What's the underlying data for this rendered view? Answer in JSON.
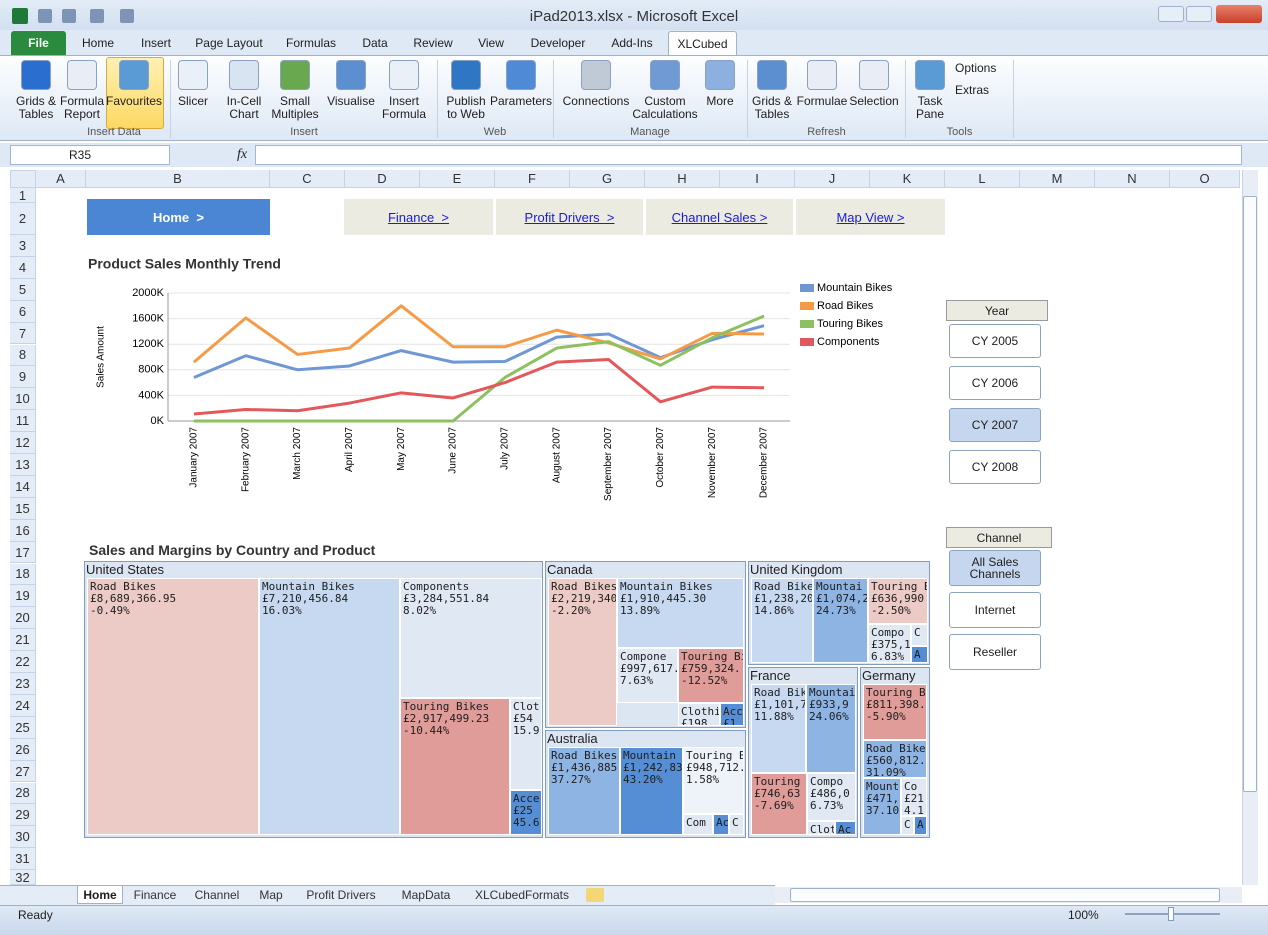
{
  "window": {
    "title": "iPad2013.xlsx - Microsoft Excel"
  },
  "ribbon": {
    "tabs": [
      "File",
      "Home",
      "Insert",
      "Page Layout",
      "Formulas",
      "Data",
      "Review",
      "View",
      "Developer",
      "Add-Ins",
      "XLCubed"
    ],
    "groups": [
      {
        "label": "Insert Data",
        "buttons": [
          "Grids &\nTables",
          "Formula\nReport",
          "Favourites"
        ]
      },
      {
        "label": "Insert",
        "buttons": [
          "Slicer",
          "In-Cell\nChart",
          "Small\nMultiples",
          "Visualise",
          "Insert\nFormula"
        ]
      },
      {
        "label": "Web",
        "buttons": [
          "Publish\nto Web",
          "Parameters"
        ]
      },
      {
        "label": "Manage",
        "buttons": [
          "Connections",
          "Custom\nCalculations",
          "More"
        ]
      },
      {
        "label": "Refresh",
        "buttons": [
          "Grids &\nTables",
          "Formulae",
          "Selection"
        ]
      },
      {
        "label": "Tools",
        "buttons": [
          "Task\nPane",
          "Options",
          "Extras"
        ]
      }
    ]
  },
  "name_box": "R35",
  "formula_label": "fx",
  "columns": [
    "A",
    "B",
    "C",
    "D",
    "E",
    "F",
    "G",
    "H",
    "I",
    "J",
    "K",
    "L",
    "M",
    "N",
    "O"
  ],
  "rows": [
    1,
    2,
    3,
    4,
    5,
    6,
    7,
    8,
    9,
    10,
    11,
    12,
    13,
    14,
    15,
    16,
    17,
    18,
    19,
    20,
    21,
    22,
    23,
    24,
    25,
    26,
    27,
    28,
    29,
    30,
    31,
    32
  ],
  "navigation": [
    "Home  >",
    "Finance  >",
    "Profit Drivers  >",
    "Channel Sales >",
    "Map View >"
  ],
  "chart_data": {
    "type": "line",
    "title": "Product Sales Monthly Trend",
    "y_label": "Sales Amount",
    "categories": [
      "January 2007",
      "February 2007",
      "March 2007",
      "April 2007",
      "May 2007",
      "June 2007",
      "July 2007",
      "August 2007",
      "September 2007",
      "October 2007",
      "November 2007",
      "December 2007"
    ],
    "series": [
      {
        "name": "Mountain Bikes",
        "color": "#6f97d4",
        "values": [
          680000,
          1020000,
          800000,
          860000,
          1100000,
          920000,
          930000,
          1310000,
          1360000,
          990000,
          1270000,
          1490000
        ]
      },
      {
        "name": "Road Bikes",
        "color": "#f79a46",
        "values": [
          920000,
          1610000,
          1040000,
          1140000,
          1800000,
          1160000,
          1160000,
          1420000,
          1220000,
          970000,
          1370000,
          1360000
        ]
      },
      {
        "name": "Touring Bikes",
        "color": "#8dc160",
        "values": [
          0,
          0,
          0,
          0,
          0,
          0,
          680000,
          1140000,
          1240000,
          870000,
          1300000,
          1640000
        ]
      },
      {
        "name": "Components",
        "color": "#e3585a",
        "values": [
          110000,
          180000,
          160000,
          280000,
          440000,
          360000,
          600000,
          920000,
          960000,
          300000,
          530000,
          520000
        ]
      }
    ],
    "ylim": [
      0,
      2000000
    ],
    "yticks": [
      {
        "value": 0,
        "label": "0K"
      },
      {
        "value": 400000,
        "label": "400K"
      },
      {
        "value": 800000,
        "label": "800K"
      },
      {
        "value": 1200000,
        "label": "1200K"
      },
      {
        "value": 1600000,
        "label": "1600K"
      },
      {
        "value": 2000000,
        "label": "2000K"
      }
    ],
    "grid": true,
    "legend": "right"
  },
  "slicers": [
    {
      "title": "Year",
      "items": [
        "CY 2005",
        "CY 2006",
        "CY 2007",
        "CY 2008"
      ]
    },
    {
      "title": "Channel",
      "items": [
        "All Sales Channels",
        "Internet",
        "Reseller"
      ]
    }
  ],
  "treemap": {
    "title": "Sales and Margins by Country and Product",
    "regions": [
      {
        "name": "United States",
        "cells": [
          [
            "Road Bikes",
            "£8,689,366.95",
            "-0.49%"
          ],
          [
            "Mountain Bikes",
            "£7,210,456.84",
            "16.03%"
          ],
          [
            "Components",
            "£3,284,551.84",
            "8.02%"
          ],
          [
            "Touring Bikes",
            "£2,917,499.23",
            "-10.44%"
          ],
          [
            "Clot",
            "£54",
            "15.9"
          ],
          [
            "Acce",
            "£25",
            "45.6"
          ]
        ]
      },
      {
        "name": "Canada",
        "cells": [
          [
            "Road Bikes",
            "£2,219,340",
            "-2.20%"
          ],
          [
            "Mountain Bikes",
            "£1,910,445.30",
            "13.89%"
          ],
          [
            "Compone",
            "£997,617.",
            "7.63%"
          ],
          [
            "Touring Bi",
            "£759,324.",
            "-12.52%"
          ],
          [
            "Clothi",
            "£198"
          ],
          [
            "Acc",
            "£1"
          ]
        ]
      },
      {
        "name": "Australia",
        "cells": [
          [
            "Road Bikes",
            "£1,436,885.",
            "37.27%"
          ],
          [
            "Mountain",
            "£1,242,83",
            "43.20%"
          ],
          [
            "Touring Bi",
            "£948,712.",
            "1.58%"
          ],
          [
            "Com"
          ],
          [
            "Ac"
          ],
          [
            "C"
          ]
        ]
      },
      {
        "name": "United Kingdom",
        "cells": [
          [
            "Road Bike",
            "£1,238,20",
            "14.86%"
          ],
          [
            "Mountai",
            "£1,074,2",
            "24.73%"
          ],
          [
            "Touring Bi",
            "£636,990",
            "-2.50%"
          ],
          [
            "Compo",
            "£375,1",
            "6.83%"
          ],
          [
            "C"
          ],
          [
            "A"
          ]
        ]
      },
      {
        "name": "France",
        "cells": [
          [
            "Road Bik",
            "£1,101,7",
            "11.88%"
          ],
          [
            "Mountai",
            "£933,9",
            "24.06%"
          ],
          [
            "Touring B",
            "£746,63",
            "-7.69%"
          ],
          [
            "Compo",
            "£486,0",
            "6.73%"
          ],
          [
            "Clot"
          ],
          [
            "Ac"
          ]
        ]
      },
      {
        "name": "Germany",
        "cells": [
          [
            "Touring Bi",
            "£811,398.",
            "-5.90%"
          ],
          [
            "Road Bike",
            "£560,812.",
            "31.09%"
          ],
          [
            "Mount",
            "£471,",
            "37.10"
          ],
          [
            "Co",
            "£21",
            "4.1"
          ],
          [
            "C"
          ],
          [
            "A"
          ]
        ]
      }
    ]
  },
  "sheet_tabs": [
    "Home",
    "Finance",
    "Channel",
    "Map",
    "Profit Drivers",
    "MapData",
    "XLCubedFormats"
  ],
  "status": {
    "mode": "Ready",
    "zoom": "100%"
  }
}
